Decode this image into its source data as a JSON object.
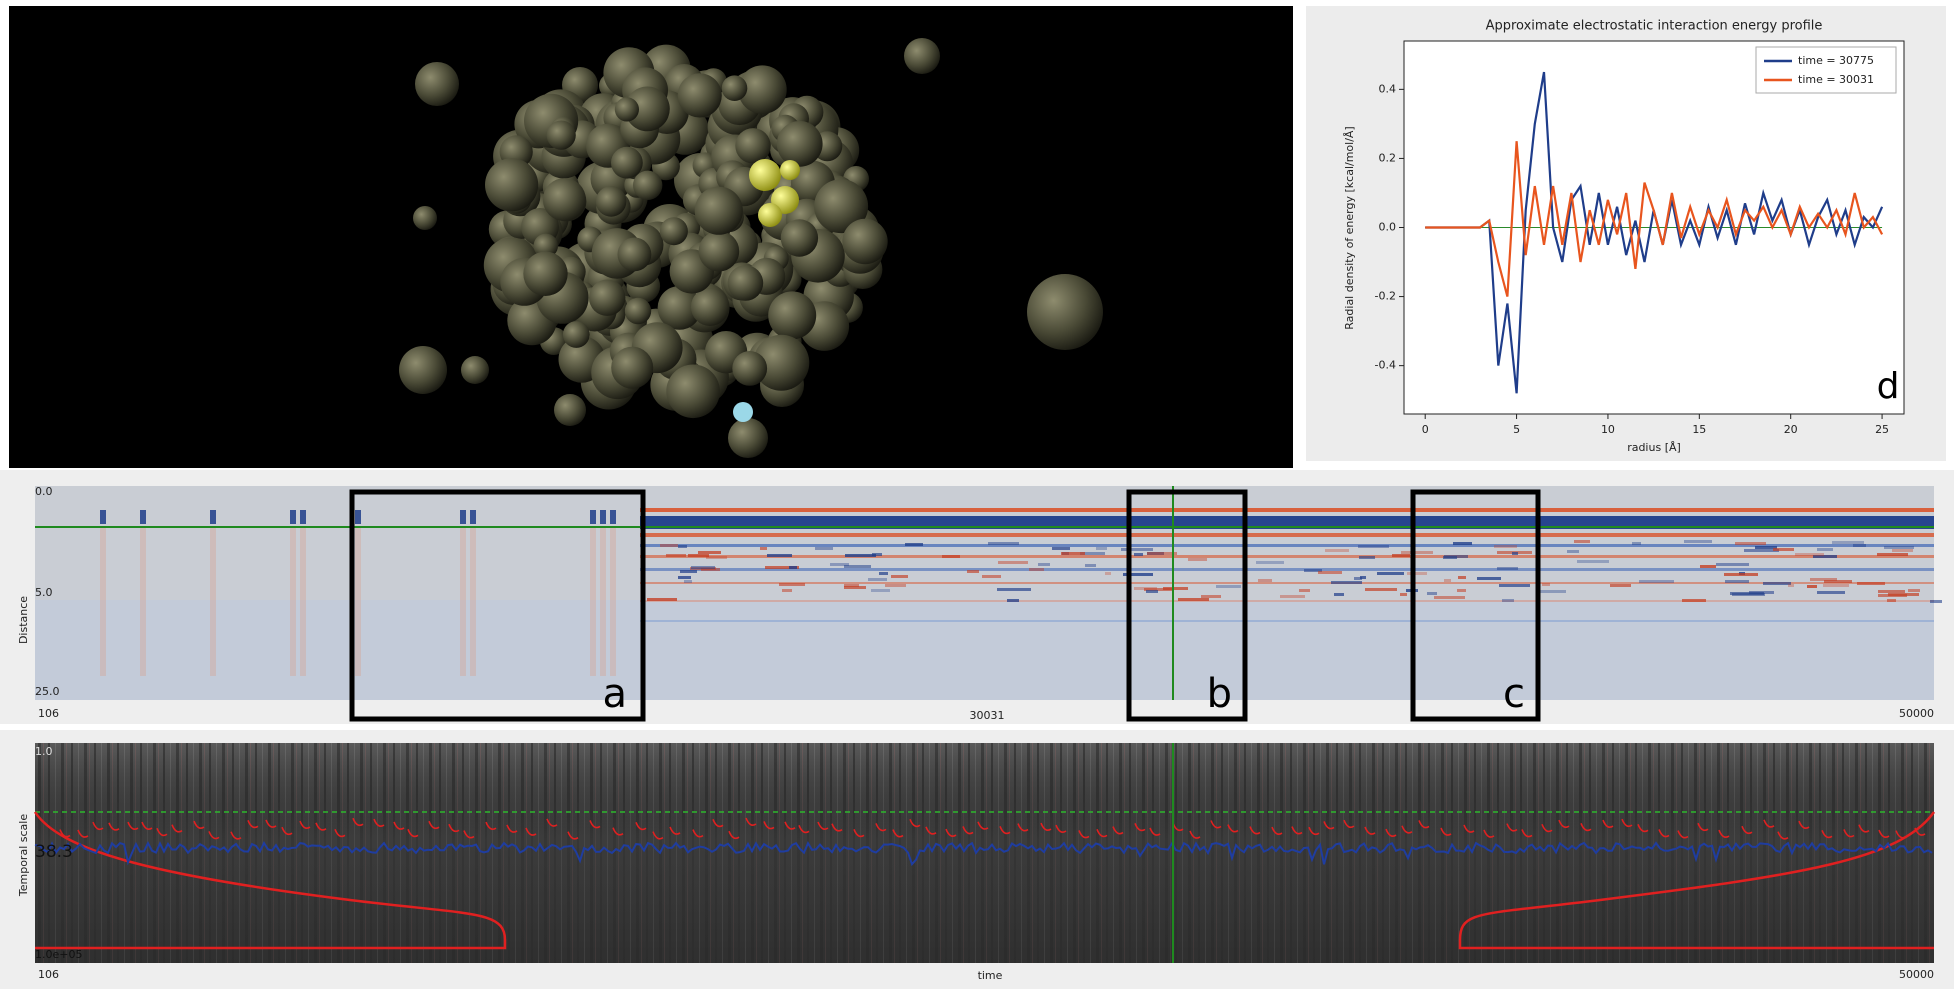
{
  "viewer3d": {},
  "chart_data": {
    "type": "line",
    "title": "Approximate electrostatic interaction energy profile",
    "xlabel": "radius [Å]",
    "ylabel": "Radial density of energy [kcal/mol/Å]",
    "annotation": "d",
    "x": [
      0,
      0.5,
      1,
      1.5,
      2,
      2.5,
      3,
      3.5,
      4,
      4.5,
      5,
      5.5,
      6,
      6.5,
      7,
      7.5,
      8,
      8.5,
      9,
      9.5,
      10,
      10.5,
      11,
      11.5,
      12,
      12.5,
      13,
      13.5,
      14,
      14.5,
      15,
      15.5,
      16,
      16.5,
      17,
      17.5,
      18,
      18.5,
      19,
      19.5,
      20,
      20.5,
      21,
      21.5,
      22,
      22.5,
      23,
      23.5,
      24,
      24.5,
      25
    ],
    "series": [
      {
        "name": "time = 30775",
        "color": "#1f3d8a",
        "values": [
          0,
          0,
          0,
          0,
          0,
          0,
          0,
          0.02,
          -0.4,
          -0.22,
          -0.48,
          0.05,
          0.3,
          0.45,
          0,
          -0.1,
          0.08,
          0.12,
          -0.05,
          0.1,
          -0.05,
          0.06,
          -0.08,
          0.02,
          -0.1,
          0.05,
          -0.05,
          0.08,
          -0.05,
          0.02,
          -0.05,
          0.06,
          -0.03,
          0.05,
          -0.05,
          0.07,
          -0.02,
          0.1,
          0.02,
          0.08,
          -0.02,
          0.05,
          -0.05,
          0.03,
          0.08,
          -0.02,
          0.05,
          -0.05,
          0.03,
          0,
          0.06
        ]
      },
      {
        "name": "time = 30031",
        "color": "#e8551e",
        "values": [
          0,
          0,
          0,
          0,
          0,
          0,
          0,
          0.02,
          -0.1,
          -0.2,
          0.25,
          -0.08,
          0.12,
          -0.05,
          0.12,
          -0.05,
          0.1,
          -0.1,
          0.05,
          -0.05,
          0.08,
          -0.02,
          0.1,
          -0.12,
          0.13,
          0.05,
          -0.05,
          0.1,
          -0.03,
          0.06,
          -0.02,
          0.05,
          0,
          0.08,
          -0.02,
          0.05,
          0.02,
          0.06,
          0,
          0.05,
          -0.02,
          0.06,
          0,
          0.04,
          0,
          0.05,
          -0.02,
          0.1,
          0,
          0.03,
          -0.02
        ]
      }
    ],
    "xlim": [
      -1.16,
      26.2
    ],
    "ylim": [
      -0.54,
      0.54
    ],
    "xticks": [
      0,
      5,
      10,
      15,
      20,
      25
    ],
    "yticks": [
      -0.4,
      -0.2,
      {
        "value": 0,
        "label": "0.0"
      },
      0.2,
      0.4
    ],
    "legend": "upper right"
  },
  "heatmap": {
    "y_label": "Distance",
    "y_labels": [
      "0.0",
      "5.0",
      "25.0"
    ],
    "x_labels": [
      "106",
      "30031",
      "50000"
    ],
    "boxes": [
      "a",
      "b",
      "c"
    ]
  },
  "temporal": {
    "y_label": "Temporal scale",
    "y_labels": [
      "1.0",
      "38.3",
      "1.0e+05"
    ],
    "x_labels": [
      "106",
      "time",
      "50000"
    ]
  }
}
